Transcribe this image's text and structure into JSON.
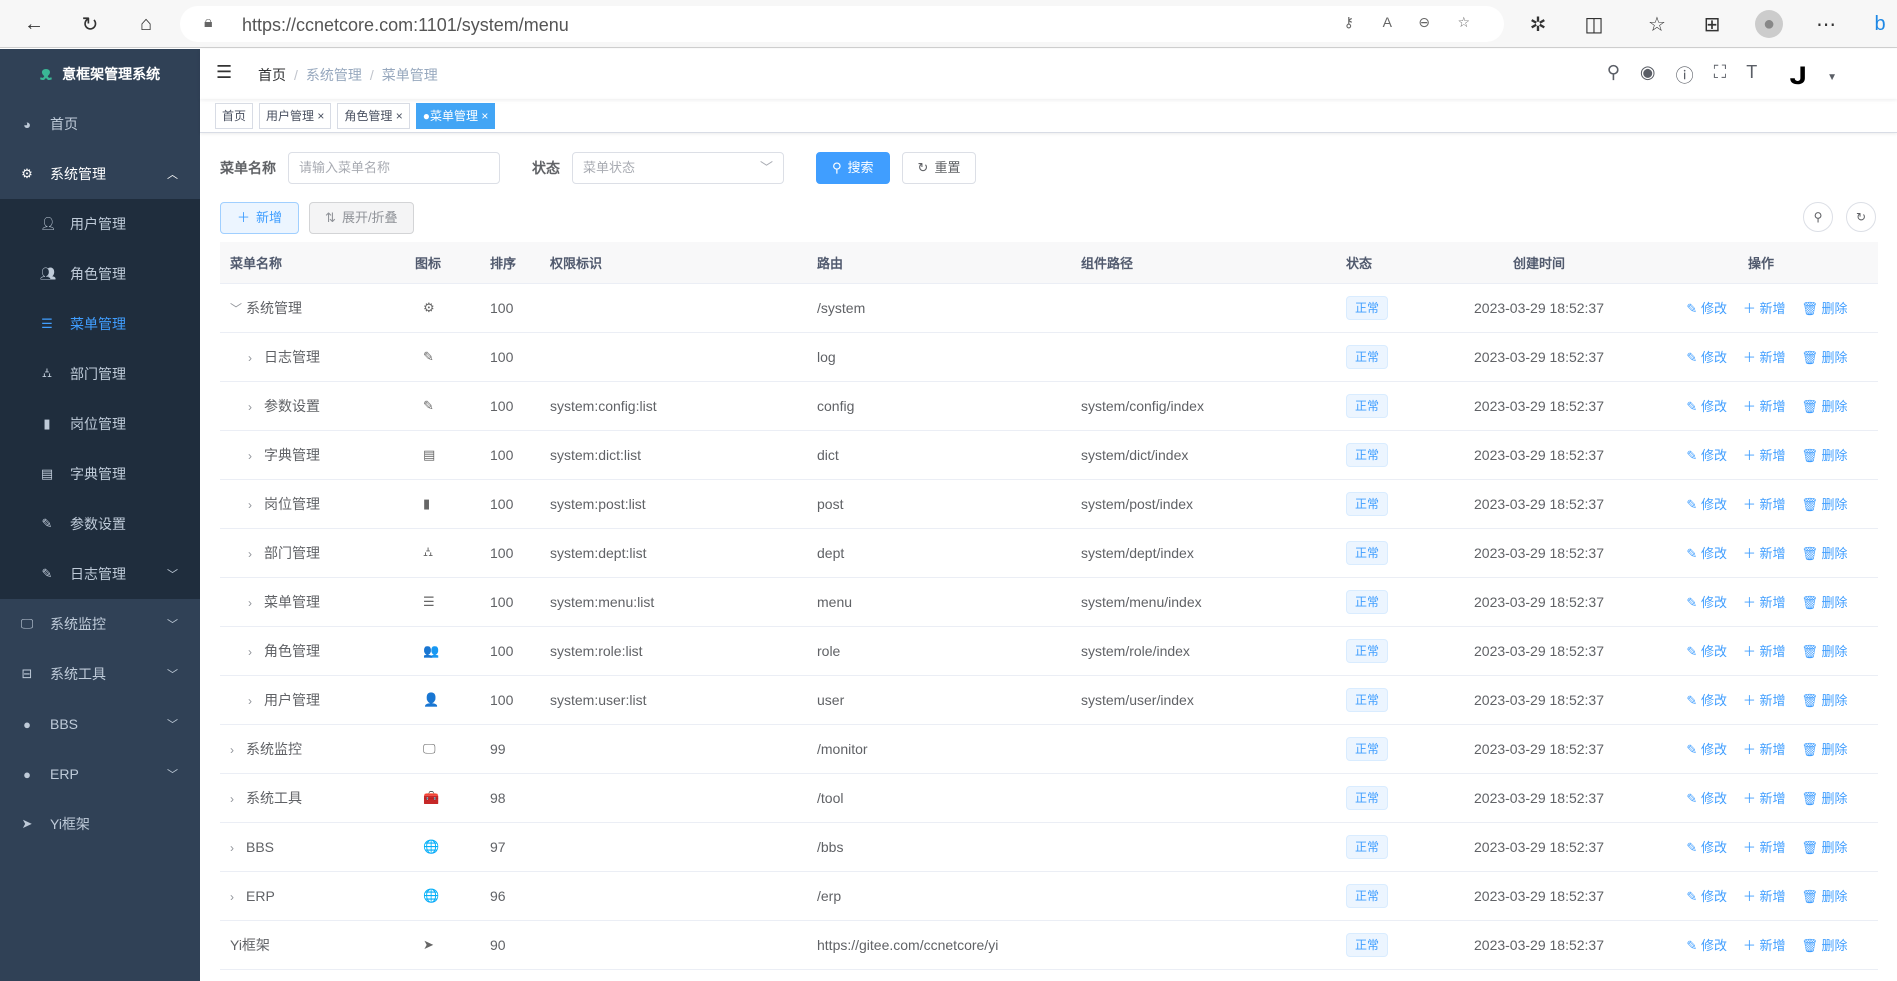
{
  "browser": {
    "url": "https://ccnetcore.com:1101/system/menu"
  },
  "sidebar": {
    "title": "意框架管理系统",
    "items": [
      {
        "label": "首页",
        "icon": "dashboard-icon"
      },
      {
        "label": "系统管理",
        "icon": "gear-icon",
        "open": true,
        "children": [
          {
            "label": "用户管理",
            "icon": "user-icon"
          },
          {
            "label": "角色管理",
            "icon": "peoples-icon"
          },
          {
            "label": "菜单管理",
            "icon": "tree-table-icon",
            "active": true
          },
          {
            "label": "部门管理",
            "icon": "tree-icon"
          },
          {
            "label": "岗位管理",
            "icon": "post-icon"
          },
          {
            "label": "字典管理",
            "icon": "dict-icon"
          },
          {
            "label": "参数设置",
            "icon": "edit-icon"
          },
          {
            "label": "日志管理",
            "icon": "log-icon"
          }
        ]
      },
      {
        "label": "系统监控",
        "icon": "monitor-icon"
      },
      {
        "label": "系统工具",
        "icon": "tool-icon"
      },
      {
        "label": "BBS",
        "icon": "globe-icon"
      },
      {
        "label": "ERP",
        "icon": "globe-icon"
      },
      {
        "label": "Yi框架",
        "icon": "send-icon"
      }
    ]
  },
  "breadcrumb": [
    "首页",
    "系统管理",
    "菜单管理"
  ],
  "tags": [
    {
      "label": "首页"
    },
    {
      "label": "用户管理"
    },
    {
      "label": "角色管理"
    },
    {
      "label": "菜单管理",
      "active": true
    }
  ],
  "form": {
    "name_label": "菜单名称",
    "name_placeholder": "请输入菜单名称",
    "status_label": "状态",
    "status_placeholder": "菜单状态",
    "search": "搜索",
    "reset": "重置"
  },
  "toolbar": {
    "add": "新增",
    "expand": "展开/折叠"
  },
  "table": {
    "headers": [
      "菜单名称",
      "图标",
      "排序",
      "权限标识",
      "路由",
      "组件路径",
      "状态",
      "创建时间",
      "操作"
    ],
    "ops": [
      "修改",
      "新增",
      "删除"
    ],
    "rows": [
      {
        "name": "系统管理",
        "level": 0,
        "expand": "open",
        "icon": "⚙",
        "sort": "100",
        "perm": "",
        "route": "/system",
        "comp": "",
        "status": "正常",
        "time": "2023-03-29 18:52:37"
      },
      {
        "name": "日志管理",
        "level": 1,
        "expand": "closed",
        "icon": "✎",
        "sort": "100",
        "perm": "",
        "route": "log",
        "comp": "",
        "status": "正常",
        "time": "2023-03-29 18:52:37"
      },
      {
        "name": "参数设置",
        "level": 1,
        "expand": "closed",
        "icon": "✎",
        "sort": "100",
        "perm": "system:config:list",
        "route": "config",
        "comp": "system/config/index",
        "status": "正常",
        "time": "2023-03-29 18:52:37"
      },
      {
        "name": "字典管理",
        "level": 1,
        "expand": "closed",
        "icon": "▤",
        "sort": "100",
        "perm": "system:dict:list",
        "route": "dict",
        "comp": "system/dict/index",
        "status": "正常",
        "time": "2023-03-29 18:52:37"
      },
      {
        "name": "岗位管理",
        "level": 1,
        "expand": "closed",
        "icon": "▮",
        "sort": "100",
        "perm": "system:post:list",
        "route": "post",
        "comp": "system/post/index",
        "status": "正常",
        "time": "2023-03-29 18:52:37"
      },
      {
        "name": "部门管理",
        "level": 1,
        "expand": "closed",
        "icon": "⛼",
        "sort": "100",
        "perm": "system:dept:list",
        "route": "dept",
        "comp": "system/dept/index",
        "status": "正常",
        "time": "2023-03-29 18:52:37"
      },
      {
        "name": "菜单管理",
        "level": 1,
        "expand": "closed",
        "icon": "☰",
        "sort": "100",
        "perm": "system:menu:list",
        "route": "menu",
        "comp": "system/menu/index",
        "status": "正常",
        "time": "2023-03-29 18:52:37"
      },
      {
        "name": "角色管理",
        "level": 1,
        "expand": "closed",
        "icon": "👥",
        "sort": "100",
        "perm": "system:role:list",
        "route": "role",
        "comp": "system/role/index",
        "status": "正常",
        "time": "2023-03-29 18:52:37"
      },
      {
        "name": "用户管理",
        "level": 1,
        "expand": "closed",
        "icon": "👤",
        "sort": "100",
        "perm": "system:user:list",
        "route": "user",
        "comp": "system/user/index",
        "status": "正常",
        "time": "2023-03-29 18:52:37"
      },
      {
        "name": "系统监控",
        "level": 0,
        "expand": "closed",
        "icon": "🖵",
        "sort": "99",
        "perm": "",
        "route": "/monitor",
        "comp": "",
        "status": "正常",
        "time": "2023-03-29 18:52:37"
      },
      {
        "name": "系统工具",
        "level": 0,
        "expand": "closed",
        "icon": "🧰",
        "sort": "98",
        "perm": "",
        "route": "/tool",
        "comp": "",
        "status": "正常",
        "time": "2023-03-29 18:52:37"
      },
      {
        "name": "BBS",
        "level": 0,
        "expand": "closed",
        "icon": "🌐",
        "sort": "97",
        "perm": "",
        "route": "/bbs",
        "comp": "",
        "status": "正常",
        "time": "2023-03-29 18:52:37"
      },
      {
        "name": "ERP",
        "level": 0,
        "expand": "closed",
        "icon": "🌐",
        "sort": "96",
        "perm": "",
        "route": "/erp",
        "comp": "",
        "status": "正常",
        "time": "2023-03-29 18:52:37"
      },
      {
        "name": "Yi框架",
        "level": 0,
        "expand": "none",
        "icon": "➤",
        "sort": "90",
        "perm": "",
        "route": "https://gitee.com/ccnetcore/yi",
        "comp": "",
        "status": "正常",
        "time": "2023-03-29 18:52:37"
      }
    ]
  },
  "colors": {
    "sidebar": "#304156",
    "submenu": "#1f2d3d",
    "primary": "#409eff",
    "tag_active": "#42a5f5"
  }
}
